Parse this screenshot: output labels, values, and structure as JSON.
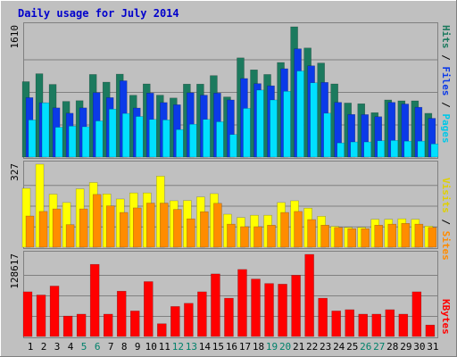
{
  "chart_data": [
    {
      "type": "bar",
      "title": "Daily usage for July 2014",
      "panel": "pages-files-hits",
      "ymax_label": "1610",
      "ylim": [
        0,
        1610
      ],
      "legend": [
        "Pages",
        "Files",
        "Hits"
      ],
      "categories": [
        "1",
        "2",
        "3",
        "4",
        "5",
        "6",
        "7",
        "8",
        "9",
        "10",
        "11",
        "12",
        "13",
        "14",
        "15",
        "16",
        "17",
        "18",
        "19",
        "20",
        "21",
        "22",
        "23",
        "24",
        "25",
        "26",
        "27",
        "28",
        "29",
        "30",
        "31"
      ],
      "weekend_days": [
        "5",
        "6",
        "12",
        "13",
        "19",
        "20",
        "26",
        "27"
      ],
      "series": [
        {
          "name": "Hits",
          "values": [
            932,
            1030,
            898,
            688,
            697,
            1021,
            926,
            1025,
            764,
            904,
            765,
            730,
            902,
            902,
            1007,
            743,
            1226,
            1078,
            1021,
            1169,
            1610,
            1348,
            1162,
            904,
            668,
            659,
            549,
            706,
            695,
            695,
            541
          ]
        },
        {
          "name": "Files",
          "values": [
            735,
            671,
            608,
            542,
            608,
            796,
            735,
            943,
            606,
            791,
            674,
            647,
            795,
            765,
            791,
            706,
            971,
            908,
            881,
            1092,
            1338,
            1128,
            923,
            676,
            527,
            525,
            499,
            676,
            656,
            616,
            479
          ]
        },
        {
          "name": "Pages",
          "values": [
            459,
            671,
            369,
            383,
            375,
            447,
            593,
            539,
            502,
            465,
            460,
            340,
            406,
            466,
            437,
            279,
            602,
            828,
            706,
            813,
            1064,
            918,
            542,
            175,
            187,
            187,
            202,
            206,
            197,
            197,
            163
          ]
        }
      ]
    },
    {
      "type": "bar",
      "panel": "sites-visits",
      "ymax_label": "327",
      "ylim": [
        0,
        327
      ],
      "legend": [
        "Sites",
        "Visits"
      ],
      "categories": [
        "1",
        "2",
        "3",
        "4",
        "5",
        "6",
        "7",
        "8",
        "9",
        "10",
        "11",
        "12",
        "13",
        "14",
        "15",
        "16",
        "17",
        "18",
        "19",
        "20",
        "21",
        "22",
        "23",
        "24",
        "25",
        "26",
        "27",
        "28",
        "29",
        "30",
        "31"
      ],
      "series": [
        {
          "name": "Visits",
          "values": [
            232,
            327,
            209,
            176,
            230,
            255,
            210,
            190,
            214,
            214,
            280,
            183,
            184,
            198,
            211,
            130,
            117,
            126,
            126,
            176,
            183,
            154,
            122,
            82,
            78,
            78,
            110,
            110,
            112,
            110,
            83
          ]
        },
        {
          "name": "Sites",
          "values": [
            123,
            141,
            151,
            89,
            151,
            208,
            163,
            137,
            155,
            174,
            174,
            149,
            112,
            140,
            173,
            91,
            81,
            81,
            87,
            137,
            141,
            109,
            87,
            78,
            73,
            73,
            87,
            91,
            94,
            91,
            78
          ]
        }
      ]
    },
    {
      "type": "bar",
      "panel": "kbytes",
      "ymax_label": "128617",
      "ylim": [
        0,
        128617
      ],
      "legend": [
        "KBytes"
      ],
      "categories": [
        "1",
        "2",
        "3",
        "4",
        "5",
        "6",
        "7",
        "8",
        "9",
        "10",
        "11",
        "12",
        "13",
        "14",
        "15",
        "16",
        "17",
        "18",
        "19",
        "20",
        "21",
        "22",
        "23",
        "24",
        "25",
        "26",
        "27",
        "28",
        "29",
        "30",
        "31"
      ],
      "series": [
        {
          "name": "KBytes",
          "values": [
            70000,
            65000,
            79000,
            32000,
            35000,
            113000,
            35000,
            71000,
            40000,
            86000,
            20000,
            47000,
            52000,
            70000,
            98000,
            60000,
            105000,
            90000,
            83000,
            82000,
            96000,
            128617,
            60000,
            40000,
            42000,
            35000,
            35000,
            42000,
            35000,
            70000,
            18000
          ]
        }
      ]
    }
  ],
  "colors": {
    "background": "#c0c0c0",
    "title": "#0000cc",
    "hits": "#1c7a5e",
    "files": "#0b3ae8",
    "pages": "#00e0ff",
    "visits": "#ffff00",
    "sites": "#ff8c00",
    "kbytes": "#ff0000",
    "weekday_label": "#000000",
    "weekend_label": "#00806a"
  }
}
